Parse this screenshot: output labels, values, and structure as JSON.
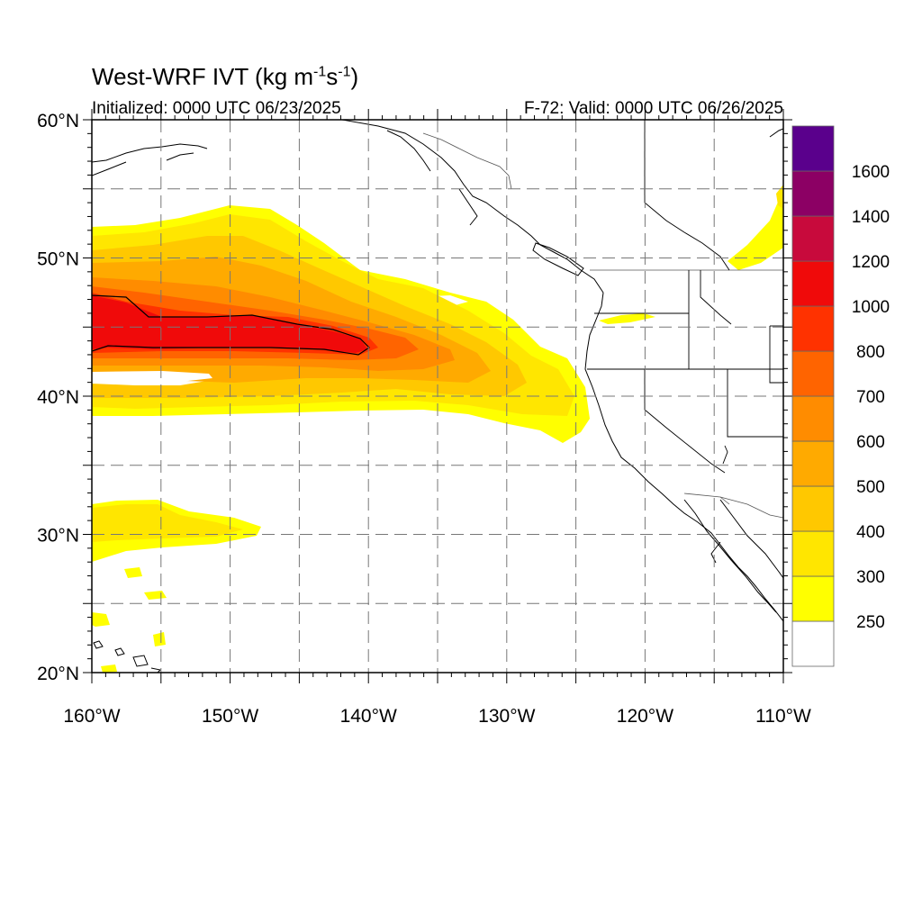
{
  "title": {
    "main": "West-WRF IVT (kg m",
    "exp1": "-1",
    "mid": "s",
    "exp2": "-1",
    "end": ")"
  },
  "subtitle_left": "Initialized: 0000 UTC 06/23/2025",
  "subtitle_right": "F-72: Valid: 0000 UTC 06/26/2025",
  "map": {
    "lon_range": [
      -160,
      -110
    ],
    "lat_range": [
      20,
      60
    ],
    "x_ticks": [
      {
        "lon": -160,
        "label": "160°W"
      },
      {
        "lon": -150,
        "label": "150°W"
      },
      {
        "lon": -140,
        "label": "140°W"
      },
      {
        "lon": -130,
        "label": "130°W"
      },
      {
        "lon": -120,
        "label": "120°W"
      },
      {
        "lon": -110,
        "label": "110°W"
      }
    ],
    "y_ticks": [
      {
        "lat": 60,
        "label": "60°N"
      },
      {
        "lat": 50,
        "label": "50°N"
      },
      {
        "lat": 40,
        "label": "40°N"
      },
      {
        "lat": 30,
        "label": "30°N"
      },
      {
        "lat": 20,
        "label": "20°N"
      }
    ],
    "grid_lons": [
      -155,
      -150,
      -145,
      -140,
      -135,
      -130,
      -125,
      -120,
      -115
    ],
    "grid_lats": [
      25,
      30,
      35,
      40,
      45,
      50,
      55
    ]
  },
  "colorbar": {
    "levels": [
      {
        "label": "",
        "color": "#ffffff"
      },
      {
        "label": "250",
        "color": "#ffff00"
      },
      {
        "label": "300",
        "color": "#ffe600"
      },
      {
        "label": "400",
        "color": "#ffc800"
      },
      {
        "label": "500",
        "color": "#ffaa00"
      },
      {
        "label": "600",
        "color": "#ff8c00"
      },
      {
        "label": "700",
        "color": "#ff6400"
      },
      {
        "label": "800",
        "color": "#ff3200"
      },
      {
        "label": "1000",
        "color": "#f00a0a"
      },
      {
        "label": "1200",
        "color": "#c80a3c"
      },
      {
        "label": "1400",
        "color": "#8c0064"
      },
      {
        "label": "1600",
        "color": "#5a008c"
      }
    ]
  }
}
